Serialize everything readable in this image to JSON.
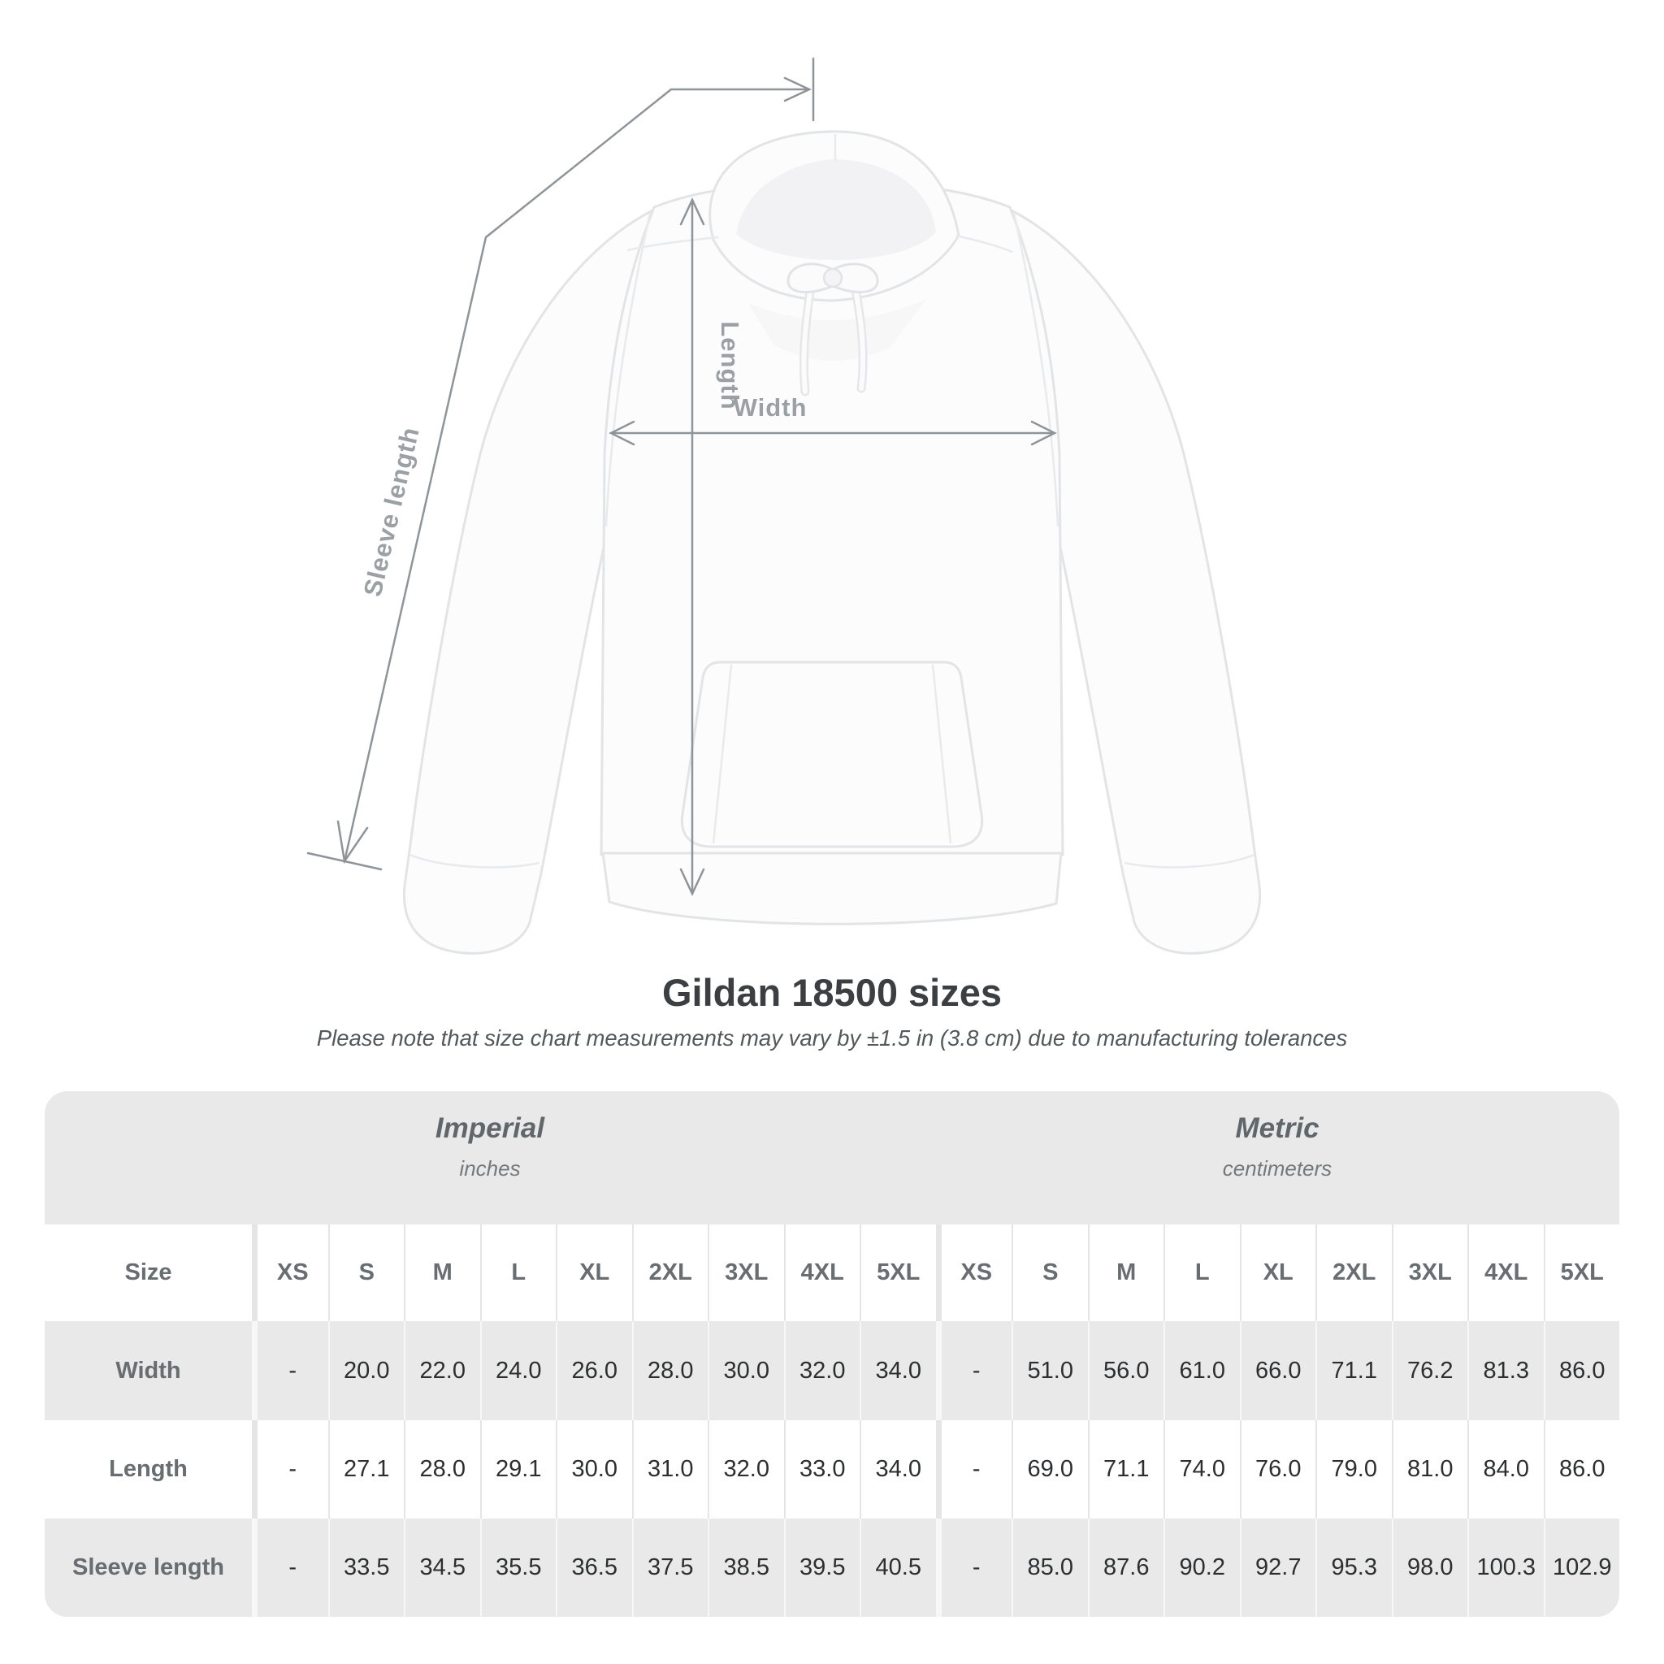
{
  "title": "Gildan 18500 sizes",
  "subtitle": "Please note that size chart measurements may vary by ±1.5 in (3.8 cm) due to manufacturing tolerances",
  "diagram": {
    "product": "white pullover hoodie front view",
    "labels": {
      "length": "Length",
      "width": "Width",
      "sleeve_length": "Sleeve length"
    }
  },
  "table": {
    "size_header": "Size",
    "unit_groups": [
      {
        "name": "Imperial",
        "unit": "inches"
      },
      {
        "name": "Metric",
        "unit": "centimeters"
      }
    ],
    "columns": [
      "XS",
      "S",
      "M",
      "L",
      "XL",
      "2XL",
      "3XL",
      "4XL",
      "5XL",
      "XS",
      "S",
      "M",
      "L",
      "XL",
      "2XL",
      "3XL",
      "4XL",
      "5XL"
    ],
    "rows": [
      {
        "label": "Width",
        "values": [
          "-",
          "20.0",
          "22.0",
          "24.0",
          "26.0",
          "28.0",
          "30.0",
          "32.0",
          "34.0",
          "-",
          "51.0",
          "56.0",
          "61.0",
          "66.0",
          "71.1",
          "76.2",
          "81.3",
          "86.0"
        ]
      },
      {
        "label": "Length",
        "values": [
          "-",
          "27.1",
          "28.0",
          "29.1",
          "30.0",
          "31.0",
          "32.0",
          "33.0",
          "34.0",
          "-",
          "69.0",
          "71.1",
          "74.0",
          "76.0",
          "79.0",
          "81.0",
          "84.0",
          "86.0"
        ]
      },
      {
        "label": "Sleeve length",
        "values": [
          "-",
          "33.5",
          "34.5",
          "35.5",
          "36.5",
          "37.5",
          "38.5",
          "39.5",
          "40.5",
          "-",
          "85.0",
          "87.6",
          "90.2",
          "92.7",
          "95.3",
          "98.0",
          "100.3",
          "102.9"
        ]
      }
    ]
  },
  "colors": {
    "band": "#e9e9e9",
    "band_sep": "#f7f7f7",
    "white_sep": "#e5e5e5",
    "label": "#676d70",
    "value": "#2c2e2f",
    "title": "#3c3f41",
    "subtitle": "#55585a",
    "annot": "#9aa0a4",
    "line": "#8f9499",
    "garment": "#fcfcfd",
    "garment_stroke": "#e3e4e6",
    "seam": "#e9eaec",
    "inner": "#f2f2f4"
  }
}
